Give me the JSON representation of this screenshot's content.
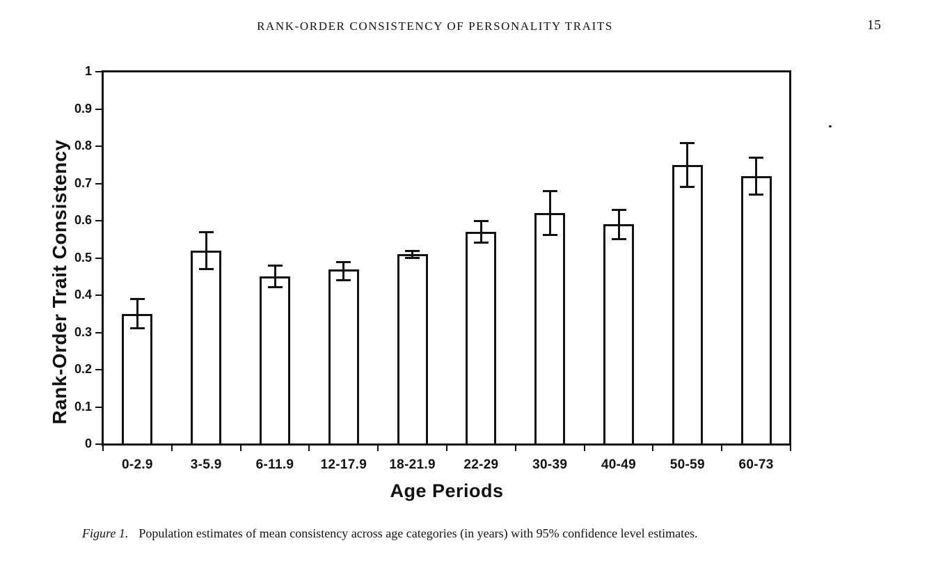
{
  "page": {
    "running_head": "RANK-ORDER CONSISTENCY OF PERSONALITY TRAITS",
    "page_number": "15"
  },
  "caption": {
    "figure_label": "Figure 1.",
    "text": "Population estimates of mean consistency across age categories (in years) with 95% confidence level estimates."
  },
  "chart_data": {
    "type": "bar",
    "title": "",
    "xlabel": "Age Periods",
    "ylabel": "Rank-Order Trait Consistency",
    "categories": [
      "0-2.9",
      "3-5.9",
      "6-11.9",
      "12-17.9",
      "18-21.9",
      "22-29",
      "30-39",
      "40-49",
      "50-59",
      "60-73"
    ],
    "values": [
      0.35,
      0.52,
      0.45,
      0.47,
      0.51,
      0.57,
      0.62,
      0.59,
      0.75,
      0.72
    ],
    "error_low": [
      0.31,
      0.47,
      0.42,
      0.44,
      0.5,
      0.54,
      0.56,
      0.55,
      0.69,
      0.67
    ],
    "error_high": [
      0.39,
      0.57,
      0.48,
      0.49,
      0.52,
      0.6,
      0.68,
      0.63,
      0.81,
      0.77
    ],
    "error_type": "95% confidence interval",
    "ylim": [
      0,
      1
    ],
    "ytick_step": 0.1,
    "ytick_labels": [
      "0",
      "0.1",
      "0.2",
      "0.3",
      "0.4",
      "0.5",
      "0.6",
      "0.7",
      "0.8",
      "0.9",
      "1"
    ],
    "grid": false,
    "legend": null,
    "bar_fill": "#ffffff",
    "bar_border": "#111111",
    "background": "#ffffff"
  },
  "colors": {
    "ink": "#111111",
    "paper": "#ffffff"
  }
}
